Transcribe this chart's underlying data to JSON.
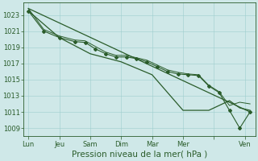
{
  "bg_color": "#cfe8e8",
  "grid_color": "#9ecece",
  "line_color": "#2a5c2a",
  "xlabel": "Pression niveau de la mer( hPa )",
  "xlabel_fontsize": 7.5,
  "tick_fontsize": 6,
  "ylim": [
    1008.0,
    1024.5
  ],
  "yticks": [
    1009,
    1011,
    1013,
    1015,
    1017,
    1019,
    1021,
    1023
  ],
  "x_tick_labels": [
    "Lun",
    "Jeu",
    "Sam",
    "Dim",
    "Mar",
    "Mer",
    "",
    "Ven"
  ],
  "x_tick_positions": [
    0,
    6,
    12,
    18,
    24,
    30,
    36,
    42
  ],
  "xlim": [
    -1,
    44
  ],
  "series": [
    {
      "x": [
        0,
        3,
        6,
        9,
        11,
        13,
        15,
        17,
        19,
        21,
        23,
        25,
        27,
        29,
        31,
        33,
        35,
        37,
        39,
        41,
        43
      ],
      "y": [
        1023.5,
        1021.0,
        1020.2,
        1019.7,
        1019.6,
        1018.8,
        1018.2,
        1017.8,
        1017.8,
        1017.6,
        1017.2,
        1016.6,
        1016.0,
        1015.7,
        1015.6,
        1015.5,
        1014.2,
        1013.4,
        1011.2,
        1009.0,
        1011.0
      ],
      "has_markers": true,
      "linewidth": 0.8,
      "marker": "D",
      "markersize": 2.0
    },
    {
      "x": [
        0,
        6,
        12,
        18,
        24,
        30,
        35,
        37,
        39,
        41,
        43
      ],
      "y": [
        1023.5,
        1020.2,
        1018.2,
        1017.2,
        1015.6,
        1011.2,
        1011.2,
        1011.8,
        1012.4,
        1011.5,
        1011.2
      ],
      "has_markers": false,
      "linewidth": 0.9
    },
    {
      "x": [
        0,
        3,
        6,
        9,
        11,
        13,
        15,
        17,
        19,
        21,
        23,
        25,
        27,
        29,
        31,
        33,
        35,
        37,
        39,
        41,
        43
      ],
      "y": [
        1023.8,
        1021.2,
        1020.4,
        1019.9,
        1019.8,
        1019.1,
        1018.4,
        1018.0,
        1018.0,
        1017.7,
        1017.4,
        1016.8,
        1016.2,
        1015.9,
        1015.7,
        1015.6,
        1014.3,
        1013.5,
        1011.8,
        1012.2,
        1012.0
      ],
      "has_markers": false,
      "linewidth": 0.7
    }
  ],
  "straight_line": {
    "x": [
      0,
      43
    ],
    "y": [
      1023.8,
      1011.0
    ],
    "linewidth": 0.9
  }
}
